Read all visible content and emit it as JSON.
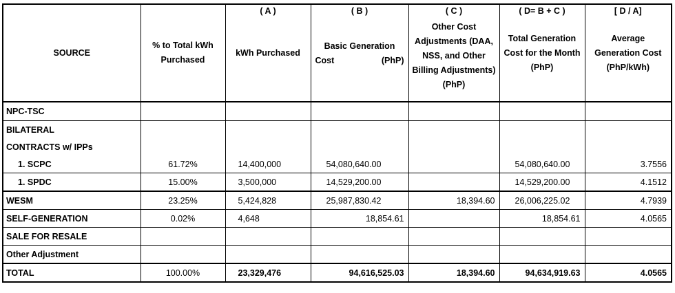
{
  "columns": {
    "source": {
      "label": "SOURCE"
    },
    "pct": {
      "letter": "",
      "label": "% to Total kWh Purchased"
    },
    "kwh": {
      "letter": "( A )",
      "label": "kWh Purchased"
    },
    "basic": {
      "letter": "( B )",
      "label_l1": "Basic Generation",
      "label_l2a": "Cost",
      "label_l2b": "(PhP)"
    },
    "other": {
      "letter": "( C )",
      "label": "Other Cost Adjustments (DAA, NSS, and Other Billing Adjustments) (PhP)"
    },
    "total": {
      "letter": "( D= B + C )",
      "label": "Total Generation Cost for the Month (PhP)"
    },
    "avg": {
      "letter": "[ D / A]",
      "label": "Average Generation Cost (PhP/kWh)"
    }
  },
  "rows": {
    "npc": {
      "source": "NPC-TSC",
      "pct": "",
      "kwh": "",
      "basic": "",
      "other": "",
      "total": "",
      "avg": ""
    },
    "bilateral_l1": {
      "source": "BILATERAL"
    },
    "bilateral_l2": {
      "source": "CONTRACTS w/ IPPs"
    },
    "scpc": {
      "source": "1.   SCPC",
      "pct": "61.72%",
      "kwh": "14,400,000",
      "basic": "54,080,640.00",
      "other": "",
      "total": "54,080,640.00",
      "avg": "3.7556"
    },
    "spdc": {
      "source": "1.   SPDC",
      "pct": "15.00%",
      "kwh": "3,500,000",
      "basic": "14,529,200.00",
      "other": "",
      "total": "14,529,200.00",
      "avg": "4.1512"
    },
    "wesm": {
      "source": "WESM",
      "pct": "23.25%",
      "kwh": "5,424,828",
      "basic": "25,987,830.42",
      "other": "18,394.60",
      "total": "26,006,225.02",
      "avg": "4.7939"
    },
    "selfgen": {
      "source": "SELF-GENERATION",
      "pct": "0.02%",
      "kwh": "4,648",
      "basic": "18,854.61",
      "other": "",
      "total": "18,854.61",
      "avg": "4.0565"
    },
    "sale": {
      "source": "SALE FOR RESALE"
    },
    "otheradj": {
      "source": "Other Adjustment"
    },
    "total": {
      "source": "TOTAL",
      "pct": "100.00%",
      "kwh": "23,329,476",
      "basic": "94,616,525.03",
      "other": "18,394.60",
      "total": "94,634,919.63",
      "avg": "4.0565"
    }
  }
}
